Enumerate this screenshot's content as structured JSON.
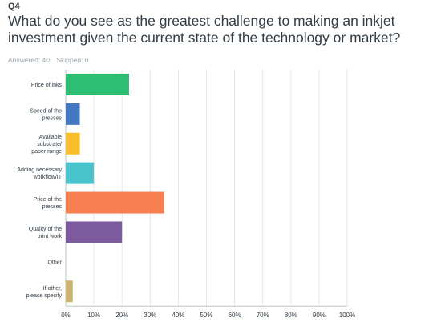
{
  "question": {
    "number": "Q4",
    "title": "What do you see as the greatest challenge to making an inkjet investment given the current state of the technology or market?",
    "answered": "Answered: 40",
    "skipped": "Skipped: 0"
  },
  "chart_data": {
    "type": "bar",
    "orientation": "horizontal",
    "categories": [
      [
        "Price of inks"
      ],
      [
        "Speed of the",
        "presses"
      ],
      [
        "Available",
        "substrate/",
        "paper range"
      ],
      [
        "Adding necessary",
        "workflow/IT"
      ],
      [
        "Price of the",
        "presses"
      ],
      [
        "Quality of the",
        "print work"
      ],
      [
        "Other"
      ],
      [
        "If other,",
        "please specify"
      ]
    ],
    "values": [
      22.5,
      5,
      5,
      10,
      35,
      20,
      0,
      2.5
    ],
    "colors": [
      "#2dbe73",
      "#4479c2",
      "#f8bf2a",
      "#4ac3cd",
      "#f6804f",
      "#7e5b9e",
      "#d8d8d8",
      "#cdb46d"
    ],
    "xticks": [
      "0%",
      "10%",
      "20%",
      "30%",
      "40%",
      "50%",
      "60%",
      "70%",
      "80%",
      "90%",
      "100%"
    ],
    "xlim": [
      0,
      100
    ],
    "grid": true,
    "legend": "none"
  }
}
